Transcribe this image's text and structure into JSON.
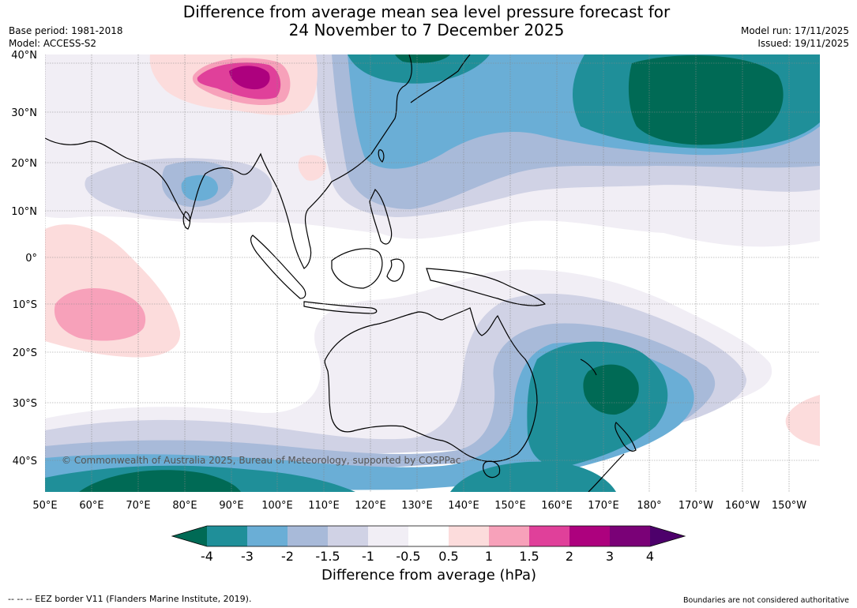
{
  "header": {
    "title_line1": "Difference from average mean sea level pressure forecast for",
    "title_line2": "24 November to 7 December 2025",
    "base_period": "Base period: 1981-2018",
    "model": "Model: ACCESS-S2",
    "model_run": "Model run: 17/11/2025",
    "issued": "Issued: 19/11/2025"
  },
  "map": {
    "credit": "© Commonwealth of Australia 2025, Bureau of Meteorology, supported by COSPPac",
    "lat_labels": [
      "40°N",
      "30°N",
      "20°N",
      "10°N",
      "0°",
      "10°S",
      "20°S",
      "30°S",
      "40°S"
    ],
    "lon_labels": [
      "50°E",
      "60°E",
      "70°E",
      "80°E",
      "90°E",
      "100°E",
      "110°E",
      "120°E",
      "130°E",
      "140°E",
      "150°E",
      "160°E",
      "170°E",
      "180°",
      "170°W",
      "160°W",
      "150°W"
    ],
    "land_color": "#000000",
    "grid_color": "#888888"
  },
  "legend": {
    "title": "Difference from average (hPa)",
    "ticks": [
      "-4",
      "-3",
      "-2",
      "-1.5",
      "-1",
      "-0.5",
      "0.5",
      "1",
      "1.5",
      "2",
      "3",
      "4"
    ],
    "colors": {
      "below_min": "#006a55",
      "m4_m3": "#1f8f99",
      "m3_m2": "#6aaed6",
      "m2_m15": "#a8bad9",
      "m15_m1": "#d0d2e5",
      "m1_m05": "#f1eef5",
      "m05_05": "#ffffff",
      "p05_1": "#fcdcdc",
      "p1_15": "#f7a1ba",
      "p15_2": "#e0409a",
      "p2_3": "#ad017e",
      "p3_4": "#7a0177",
      "above_max": "#4d006b"
    }
  },
  "footer": {
    "eez": "--  --  -- EEZ border V11 (Flanders Marine Institute, 2019).",
    "disclaimer": "Boundaries are not considered authoritative"
  }
}
